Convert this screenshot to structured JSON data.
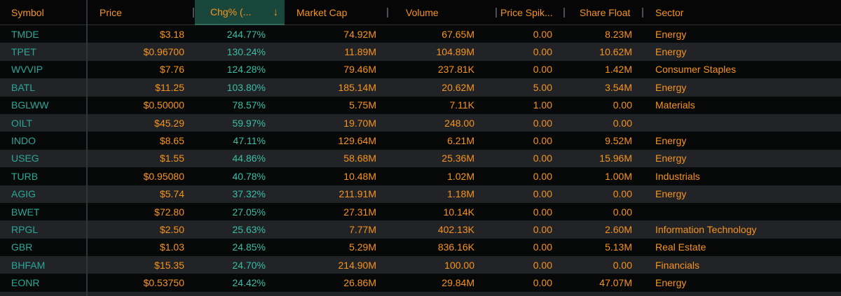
{
  "colors": {
    "orange_text": "#f7941d",
    "symbol_teal": "#2aa89a",
    "change_teal": "#38bfa8",
    "sort_active_bg": "#1a473c",
    "row_alt_bg": "#212326",
    "row_dark_bg": "#070808"
  },
  "header": {
    "columns": [
      {
        "label": "Symbol"
      },
      {
        "label": "Price"
      },
      {
        "label": "Chg% (...",
        "sort": "descending",
        "sort_icon": "↓"
      },
      {
        "label": "Market Cap"
      },
      {
        "label": "Volume"
      },
      {
        "label": "Price Spik..."
      },
      {
        "label": "Share Float"
      },
      {
        "label": "Sector"
      }
    ]
  },
  "rows": [
    {
      "symbol": "TMDE",
      "price": "$3.18",
      "chg": "244.77%",
      "market_cap": "74.92M",
      "volume": "67.65M",
      "price_spike": "0.00",
      "share_float": "8.23M",
      "sector": "Energy"
    },
    {
      "symbol": "TPET",
      "price": "$0.96700",
      "chg": "130.24%",
      "market_cap": "11.89M",
      "volume": "104.89M",
      "price_spike": "0.00",
      "share_float": "10.62M",
      "sector": "Energy"
    },
    {
      "symbol": "WVVIP",
      "price": "$7.76",
      "chg": "124.28%",
      "market_cap": "79.46M",
      "volume": "237.81K",
      "price_spike": "0.00",
      "share_float": "1.42M",
      "sector": "Consumer Staples"
    },
    {
      "symbol": "BATL",
      "price": "$11.25",
      "chg": "103.80%",
      "market_cap": "185.14M",
      "volume": "20.62M",
      "price_spike": "5.00",
      "share_float": "3.54M",
      "sector": "Energy"
    },
    {
      "symbol": "BGLWW",
      "price": "$0.50000",
      "chg": "78.57%",
      "market_cap": "5.75M",
      "volume": "7.11K",
      "price_spike": "1.00",
      "share_float": "0.00",
      "sector": "Materials"
    },
    {
      "symbol": "OILT",
      "price": "$45.29",
      "chg": "59.97%",
      "market_cap": "19.70M",
      "volume": "248.00",
      "price_spike": "0.00",
      "share_float": "0.00",
      "sector": ""
    },
    {
      "symbol": "INDO",
      "price": "$8.65",
      "chg": "47.11%",
      "market_cap": "129.64M",
      "volume": "6.21M",
      "price_spike": "0.00",
      "share_float": "9.52M",
      "sector": "Energy"
    },
    {
      "symbol": "USEG",
      "price": "$1.55",
      "chg": "44.86%",
      "market_cap": "58.68M",
      "volume": "25.36M",
      "price_spike": "0.00",
      "share_float": "15.96M",
      "sector": "Energy"
    },
    {
      "symbol": "TURB",
      "price": "$0.95080",
      "chg": "40.78%",
      "market_cap": "10.48M",
      "volume": "1.02M",
      "price_spike": "0.00",
      "share_float": "1.00M",
      "sector": "Industrials"
    },
    {
      "symbol": "AGIG",
      "price": "$5.74",
      "chg": "37.32%",
      "market_cap": "211.91M",
      "volume": "1.18M",
      "price_spike": "0.00",
      "share_float": "0.00",
      "sector": "Energy"
    },
    {
      "symbol": "BWET",
      "price": "$72.80",
      "chg": "27.05%",
      "market_cap": "27.31M",
      "volume": "10.14K",
      "price_spike": "0.00",
      "share_float": "0.00",
      "sector": ""
    },
    {
      "symbol": "RPGL",
      "price": "$2.50",
      "chg": "25.63%",
      "market_cap": "7.77M",
      "volume": "402.13K",
      "price_spike": "0.00",
      "share_float": "2.60M",
      "sector": "Information Technology"
    },
    {
      "symbol": "GBR",
      "price": "$1.03",
      "chg": "24.85%",
      "market_cap": "5.29M",
      "volume": "836.16K",
      "price_spike": "0.00",
      "share_float": "5.13M",
      "sector": "Real Estate"
    },
    {
      "symbol": "BHFAM",
      "price": "$15.35",
      "chg": "24.70%",
      "market_cap": "214.90M",
      "volume": "100.00",
      "price_spike": "0.00",
      "share_float": "0.00",
      "sector": "Financials"
    },
    {
      "symbol": "EONR",
      "price": "$0.53750",
      "chg": "24.42%",
      "market_cap": "26.86M",
      "volume": "29.84M",
      "price_spike": "0.00",
      "share_float": "47.07M",
      "sector": "Energy"
    }
  ]
}
